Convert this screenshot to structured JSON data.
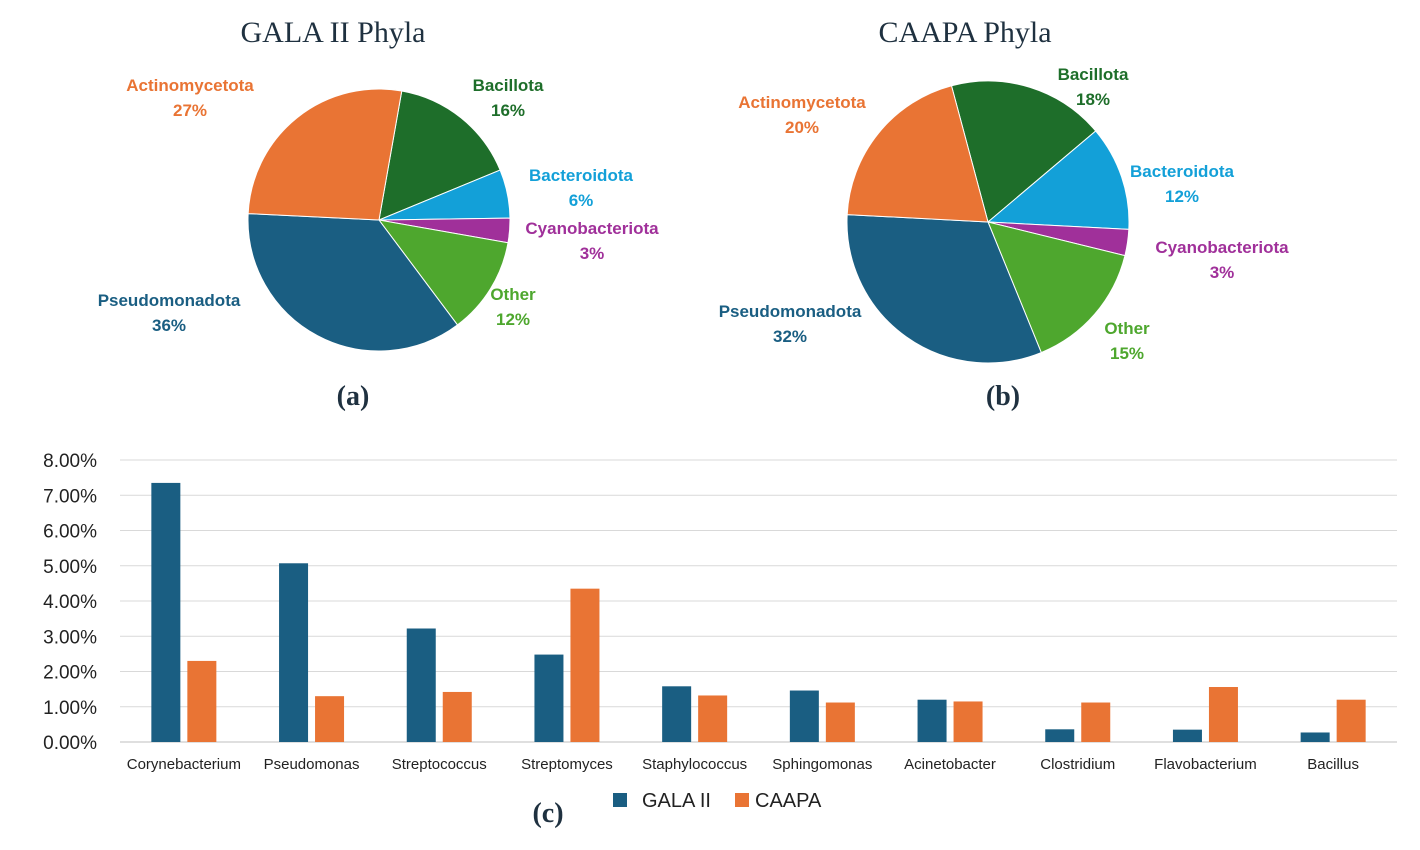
{
  "colors": {
    "pseudomonadota": "#1a5e82",
    "actinomycetota": "#e97434",
    "bacillota": "#1e6e2a",
    "bacteroidota": "#13a0d8",
    "cyanobacteriota": "#a0309a",
    "other": "#4ea72e",
    "gala": "#1a5e82",
    "caapa": "#e97434",
    "grid": "#d9d9d9",
    "axis_text": "#3a3a3a"
  },
  "chart_data": [
    {
      "type": "pie",
      "title": "GALA II Phyla",
      "caption": "(a)",
      "slices": [
        {
          "label": "Bacillota",
          "value": 16,
          "color": "#1e6e2a"
        },
        {
          "label": "Bacteroidota",
          "value": 6,
          "color": "#13a0d8"
        },
        {
          "label": "Cyanobacteriota",
          "value": 3,
          "color": "#a0309a"
        },
        {
          "label": "Other",
          "value": 12,
          "color": "#4ea72e"
        },
        {
          "label": "Pseudomonadota",
          "value": 36,
          "color": "#1a5e82"
        },
        {
          "label": "Actinomycetota",
          "value": 27,
          "color": "#e97434"
        }
      ],
      "data_labels": [
        {
          "name": "Bacillota",
          "pct": "16%"
        },
        {
          "name": "Bacteroidota",
          "pct": "6%"
        },
        {
          "name": "Cyanobacteriota",
          "pct": "3%"
        },
        {
          "name": "Other",
          "pct": "12%"
        },
        {
          "name": "Pseudomonadota",
          "pct": "36%"
        },
        {
          "name": "Actinomycetota",
          "pct": "27%"
        }
      ]
    },
    {
      "type": "pie",
      "title": "CAAPA Phyla",
      "caption": "(b)",
      "slices": [
        {
          "label": "Bacillota",
          "value": 18,
          "color": "#1e6e2a"
        },
        {
          "label": "Bacteroidota",
          "value": 12,
          "color": "#13a0d8"
        },
        {
          "label": "Cyanobacteriota",
          "value": 3,
          "color": "#a0309a"
        },
        {
          "label": "Other",
          "value": 15,
          "color": "#4ea72e"
        },
        {
          "label": "Pseudomonadota",
          "value": 32,
          "color": "#1a5e82"
        },
        {
          "label": "Actinomycetota",
          "value": 20,
          "color": "#e97434"
        }
      ],
      "data_labels": [
        {
          "name": "Bacillota",
          "pct": "18%"
        },
        {
          "name": "Bacteroidota",
          "pct": "12%"
        },
        {
          "name": "Cyanobacteriota",
          "pct": "3%"
        },
        {
          "name": "Other",
          "pct": "15%"
        },
        {
          "name": "Pseudomonadota",
          "pct": "32%"
        },
        {
          "name": "Actinomycetota",
          "pct": "20%"
        }
      ]
    },
    {
      "type": "bar",
      "caption": "(c)",
      "categories": [
        "Corynebacterium",
        "Pseudomonas",
        "Streptococcus",
        "Streptomyces",
        "Staphylococcus",
        "Sphingomonas",
        "Acinetobacter",
        "Clostridium",
        "Flavobacterium",
        "Bacillus"
      ],
      "series": [
        {
          "name": "GALA II",
          "color": "#1a5e82",
          "values": [
            7.35,
            5.07,
            3.22,
            2.48,
            1.58,
            1.46,
            1.2,
            0.36,
            0.35,
            0.27
          ]
        },
        {
          "name": "CAAPA",
          "color": "#e97434",
          "values": [
            2.3,
            1.3,
            1.42,
            4.35,
            1.32,
            1.12,
            1.15,
            1.12,
            1.56,
            1.2
          ]
        }
      ],
      "ylim": [
        0,
        8
      ],
      "yticks": [
        "0.00%",
        "1.00%",
        "2.00%",
        "3.00%",
        "4.00%",
        "5.00%",
        "6.00%",
        "7.00%",
        "8.00%"
      ],
      "grid": true,
      "legend_position": "bottom"
    }
  ]
}
